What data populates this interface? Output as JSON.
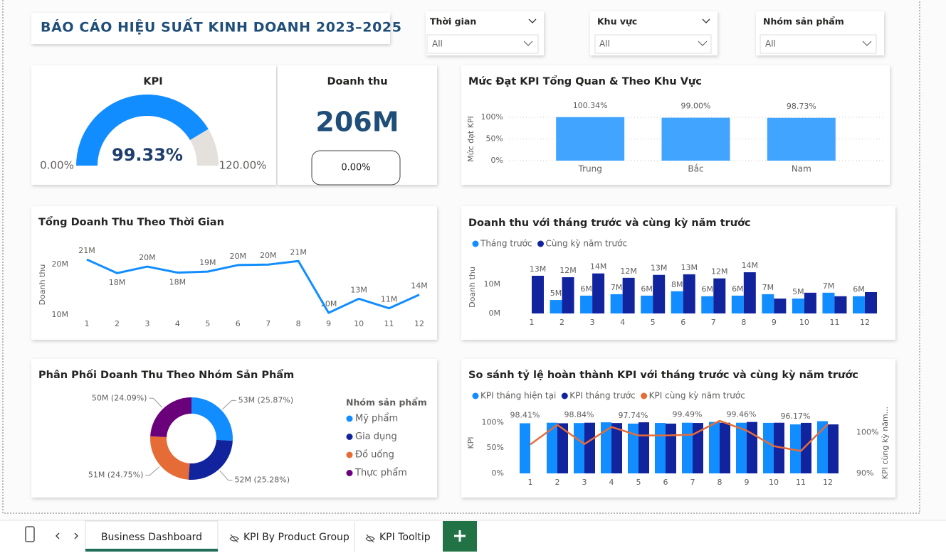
{
  "header": {
    "title": "BÁO CÁO HIỆU SUẤT KINH DOANH 2023–2025"
  },
  "filters": [
    {
      "label": "Thời gian",
      "value": "All"
    },
    {
      "label": "Khu vực",
      "value": "All"
    },
    {
      "label": "Nhóm sản phẩm",
      "value": "All"
    }
  ],
  "cards": [
    {
      "title": "Doanh thu",
      "value": "206M",
      "change": "0.00%"
    }
  ],
  "chart_data": [
    {
      "type": "gauge",
      "title": "KPI",
      "value": 99.33,
      "value_label": "99.33%",
      "ylim": [
        0,
        120
      ],
      "yticks": [
        {
          "value": 0,
          "label": "0.00%"
        },
        {
          "value": 120,
          "label": "120.00%"
        }
      ],
      "color": "#118dff",
      "track_color": "#e4e1dd"
    },
    {
      "type": "bar",
      "title": "Mức Đạt KPI Tổng Quan & Theo Khu Vực",
      "y_label": "Mức đạt KPI",
      "categories": [
        "Trung",
        "Bắc",
        "Nam"
      ],
      "values": [
        100.34,
        99.0,
        98.73
      ],
      "value_labels": [
        "100.34%",
        "99.00%",
        "98.73%"
      ],
      "color": "#41a5ff",
      "ylim": [
        0,
        100
      ],
      "yticks": [
        {
          "value": 0,
          "label": "0%"
        },
        {
          "value": 50,
          "label": "50%"
        },
        {
          "value": 100,
          "label": "100%"
        }
      ],
      "grid": true
    },
    {
      "type": "line",
      "title": "Tổng Doanh Thu Theo Thời Gian",
      "y_label": "Doanh thu",
      "categories": [
        1,
        2,
        3,
        4,
        5,
        6,
        7,
        8,
        9,
        10,
        11,
        12
      ],
      "values": [
        21.0,
        18.3,
        19.6,
        18.4,
        18.6,
        19.9,
        20.0,
        20.7,
        10.4,
        13.2,
        11.3,
        14.0
      ],
      "value_labels": [
        "21M",
        "18M",
        "20M",
        "18M",
        "19M",
        "20M",
        "20M",
        "21M",
        "10M",
        "13M",
        "11M",
        "14M"
      ],
      "color": "#118dff",
      "ylim": [
        9,
        23
      ],
      "yticks": [
        {
          "value": 10,
          "label": "10M"
        },
        {
          "value": 20,
          "label": "20M"
        }
      ],
      "grid": false
    },
    {
      "type": "grouped_bar",
      "title": "Doanh thu với tháng trước và cùng kỳ năm trước",
      "y_label": "Doanh thu",
      "categories": [
        1,
        2,
        3,
        4,
        5,
        6,
        7,
        8,
        9,
        10,
        11,
        12
      ],
      "series": [
        {
          "name": "Tháng trước",
          "color": "#118dff",
          "values": [
            null,
            4.6,
            6.1,
            6.6,
            6.1,
            7.6,
            5.9,
            6.1,
            6.6,
            5.1,
            7.1,
            5.9
          ],
          "value_labels": [
            null,
            "5M",
            "6M",
            "7M",
            "6M",
            "8M",
            "6M",
            "6M",
            "7M",
            "5M",
            "7M",
            "6M"
          ]
        },
        {
          "name": "Cùng kỳ năm trước",
          "color": "#12239e",
          "values": [
            12.9,
            12.4,
            13.7,
            12.2,
            13.2,
            13.4,
            12.0,
            14.1,
            5.1,
            7.1,
            5.9,
            7.3
          ],
          "value_labels": [
            "13M",
            "12M",
            "14M",
            "12M",
            "13M",
            "13M",
            "12M",
            "14M",
            null,
            null,
            null,
            null
          ]
        }
      ],
      "ylim": [
        0,
        18
      ],
      "yticks": [
        {
          "value": 0,
          "label": "0M"
        },
        {
          "value": 10,
          "label": "10M"
        }
      ],
      "grid": false
    },
    {
      "type": "donut",
      "title": "Phân Phối Doanh Thu Theo Nhóm Sản Phẩm",
      "legend_title": "Nhóm sản phẩm",
      "categories": [
        "Mỹ phẩm",
        "Gia dụng",
        "Đồ uống",
        "Thực phẩm"
      ],
      "values": [
        25.87,
        25.28,
        24.75,
        24.09
      ],
      "value_labels": [
        "53M (25.87%)",
        "52M (25.28%)",
        "51M (24.75%)",
        "50M (24.09%)"
      ],
      "colors": [
        "#118dff",
        "#12239e",
        "#e66c37",
        "#6b007b"
      ]
    },
    {
      "type": "combo",
      "title": "So sánh tỷ lệ hoàn thành KPI với tháng trước và cùng kỳ năm trước",
      "y_label": "KPI",
      "y2_label": "KPI cùng kỳ năm...",
      "categories": [
        1,
        2,
        3,
        4,
        5,
        6,
        7,
        8,
        9,
        10,
        11,
        12
      ],
      "series": [
        {
          "name": "KPI tháng hiện tại",
          "color": "#118dff",
          "values": [
            98.41,
            99.5,
            98.84,
            100.3,
            97.74,
            99.0,
            99.49,
            101.0,
            99.46,
            99.2,
            96.17,
            102.5
          ],
          "value_labels": [
            "98.41%",
            null,
            "98.84%",
            null,
            "97.74%",
            null,
            "99.49%",
            null,
            "99.46%",
            null,
            "96.17%",
            null
          ]
        },
        {
          "name": "KPI tháng trước",
          "color": "#12239e",
          "values": [
            null,
            98.41,
            99.5,
            98.84,
            100.3,
            97.74,
            99.0,
            99.49,
            101.0,
            99.46,
            99.2,
            96.17
          ]
        },
        {
          "name": "KPI cùng kỳ năm trước",
          "color": "#e66c37",
          "axis": "y2",
          "values": [
            97.1,
            101.9,
            97.2,
            101.4,
            99.3,
            99.3,
            99.5,
            102.9,
            100.5,
            96.7,
            95.5,
            102.1
          ]
        }
      ],
      "ylim": [
        0,
        120
      ],
      "yticks": [
        {
          "value": 0,
          "label": "0%"
        },
        {
          "value": 50,
          "label": "50%"
        },
        {
          "value": 100,
          "label": "100%"
        }
      ],
      "y2lim": [
        90,
        105
      ],
      "y2ticks": [
        {
          "value": 90,
          "label": "90%"
        },
        {
          "value": 100,
          "label": "100%"
        }
      ],
      "grid": false
    }
  ],
  "tabs": [
    "Business Dashboard",
    "KPI By Product Group",
    "KPI Tooltip"
  ]
}
